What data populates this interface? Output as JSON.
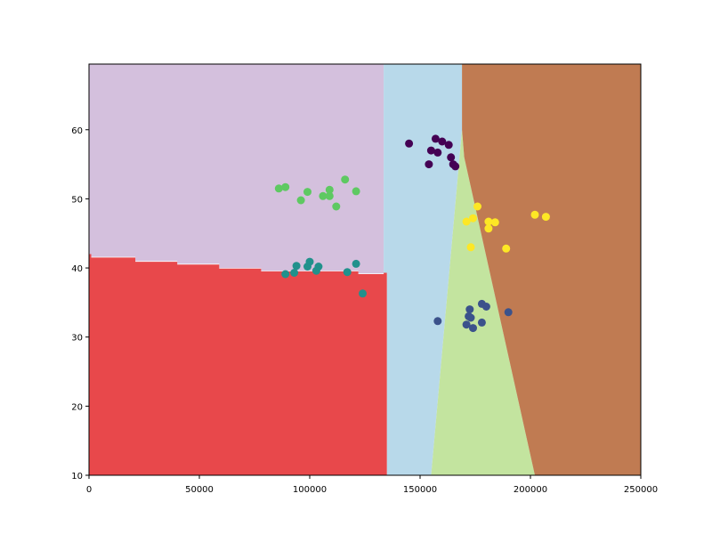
{
  "chart_data": {
    "type": "scatter",
    "title": "",
    "xlabel": "",
    "ylabel": "",
    "xlim": [
      0,
      250000
    ],
    "ylim": [
      10,
      69.5
    ],
    "xticks": [
      0,
      50000,
      100000,
      150000,
      200000,
      250000
    ],
    "xtick_labels": [
      "0",
      "50000",
      "100000",
      "150000",
      "200000",
      "250000"
    ],
    "yticks": [
      10,
      20,
      30,
      40,
      50,
      60
    ],
    "ytick_labels": [
      "10",
      "20",
      "30",
      "40",
      "50",
      "60"
    ],
    "grid": false,
    "legend": "none",
    "regions": [
      {
        "id": "region-lavender",
        "color": "#d4c0dd",
        "polygon": [
          [
            0,
            69.5
          ],
          [
            133500,
            69.5
          ],
          [
            133500,
            39.2
          ],
          [
            122000,
            39.2
          ],
          [
            122000,
            39.6
          ],
          [
            78000,
            39.6
          ],
          [
            78000,
            40.0
          ],
          [
            59000,
            40.0
          ],
          [
            59000,
            40.6
          ],
          [
            40000,
            40.6
          ],
          [
            40000,
            41.0
          ],
          [
            21000,
            41.0
          ],
          [
            21000,
            41.6
          ],
          [
            1000,
            41.6
          ],
          [
            1000,
            42.0
          ],
          [
            0,
            42.0
          ]
        ]
      },
      {
        "id": "region-red",
        "color": "#e8484b",
        "polygon": [
          [
            0,
            10
          ],
          [
            135000,
            10
          ],
          [
            135000,
            39.3
          ],
          [
            133500,
            39.3
          ],
          [
            133500,
            39.1
          ],
          [
            122000,
            39.1
          ],
          [
            122000,
            39.5
          ],
          [
            78000,
            39.5
          ],
          [
            78000,
            39.9
          ],
          [
            59000,
            39.9
          ],
          [
            59000,
            40.5
          ],
          [
            40000,
            40.5
          ],
          [
            40000,
            40.9
          ],
          [
            21000,
            40.9
          ],
          [
            21000,
            41.5
          ],
          [
            1000,
            41.5
          ],
          [
            1000,
            42.0
          ],
          [
            0,
            42.0
          ]
        ]
      },
      {
        "id": "region-light-blue",
        "color": "#b8d9ea",
        "polygon": [
          [
            133500,
            69.5
          ],
          [
            169000,
            69.5
          ],
          [
            169000,
            60.0
          ],
          [
            155000,
            10
          ],
          [
            135000,
            10
          ],
          [
            135000,
            39.3
          ],
          [
            133500,
            39.3
          ]
        ]
      },
      {
        "id": "region-light-green",
        "color": "#c3e49f",
        "polygon": [
          [
            169000,
            60.0
          ],
          [
            170000,
            56.0
          ],
          [
            202000,
            10
          ],
          [
            155000,
            10
          ]
        ]
      },
      {
        "id": "region-brown",
        "color": "#c07b52",
        "polygon": [
          [
            169000,
            69.5
          ],
          [
            250000,
            69.5
          ],
          [
            250000,
            10
          ],
          [
            202000,
            10
          ],
          [
            170000,
            56.0
          ],
          [
            169000,
            60.0
          ]
        ]
      }
    ],
    "series": [
      {
        "color": "#440154",
        "points": [
          [
            145000,
            58.0
          ],
          [
            154000,
            55.0
          ],
          [
            155000,
            57.0
          ],
          [
            157000,
            58.7
          ],
          [
            158000,
            56.7
          ],
          [
            160000,
            58.3
          ],
          [
            163000,
            57.8
          ],
          [
            164000,
            56.0
          ],
          [
            165000,
            55.0
          ],
          [
            166000,
            54.7
          ]
        ]
      },
      {
        "color": "#3b528b",
        "points": [
          [
            158000,
            32.3
          ],
          [
            171000,
            31.8
          ],
          [
            172000,
            33.0
          ],
          [
            172500,
            34.0
          ],
          [
            173000,
            32.8
          ],
          [
            174000,
            31.3
          ],
          [
            178000,
            34.8
          ],
          [
            178000,
            32.1
          ],
          [
            180000,
            34.4
          ],
          [
            190000,
            33.6
          ]
        ]
      },
      {
        "color": "#21918c",
        "points": [
          [
            89000,
            39.1
          ],
          [
            93000,
            39.3
          ],
          [
            94000,
            40.3
          ],
          [
            99000,
            40.2
          ],
          [
            100000,
            40.9
          ],
          [
            103000,
            39.6
          ],
          [
            104000,
            40.2
          ],
          [
            117000,
            39.4
          ],
          [
            121000,
            40.6
          ],
          [
            124000,
            36.3
          ]
        ]
      },
      {
        "color": "#5ec962",
        "points": [
          [
            86000,
            51.5
          ],
          [
            89000,
            51.7
          ],
          [
            96000,
            49.8
          ],
          [
            99000,
            51.0
          ],
          [
            106000,
            50.4
          ],
          [
            109000,
            51.3
          ],
          [
            109000,
            50.4
          ],
          [
            112000,
            48.9
          ],
          [
            116000,
            52.8
          ],
          [
            121000,
            51.1
          ]
        ]
      },
      {
        "color": "#fde725",
        "points": [
          [
            171000,
            46.7
          ],
          [
            173000,
            43.0
          ],
          [
            174000,
            47.2
          ],
          [
            176000,
            48.9
          ],
          [
            181000,
            46.7
          ],
          [
            181000,
            45.7
          ],
          [
            184000,
            46.6
          ],
          [
            189000,
            42.8
          ],
          [
            202000,
            47.7
          ],
          [
            207000,
            47.4
          ]
        ]
      }
    ]
  }
}
